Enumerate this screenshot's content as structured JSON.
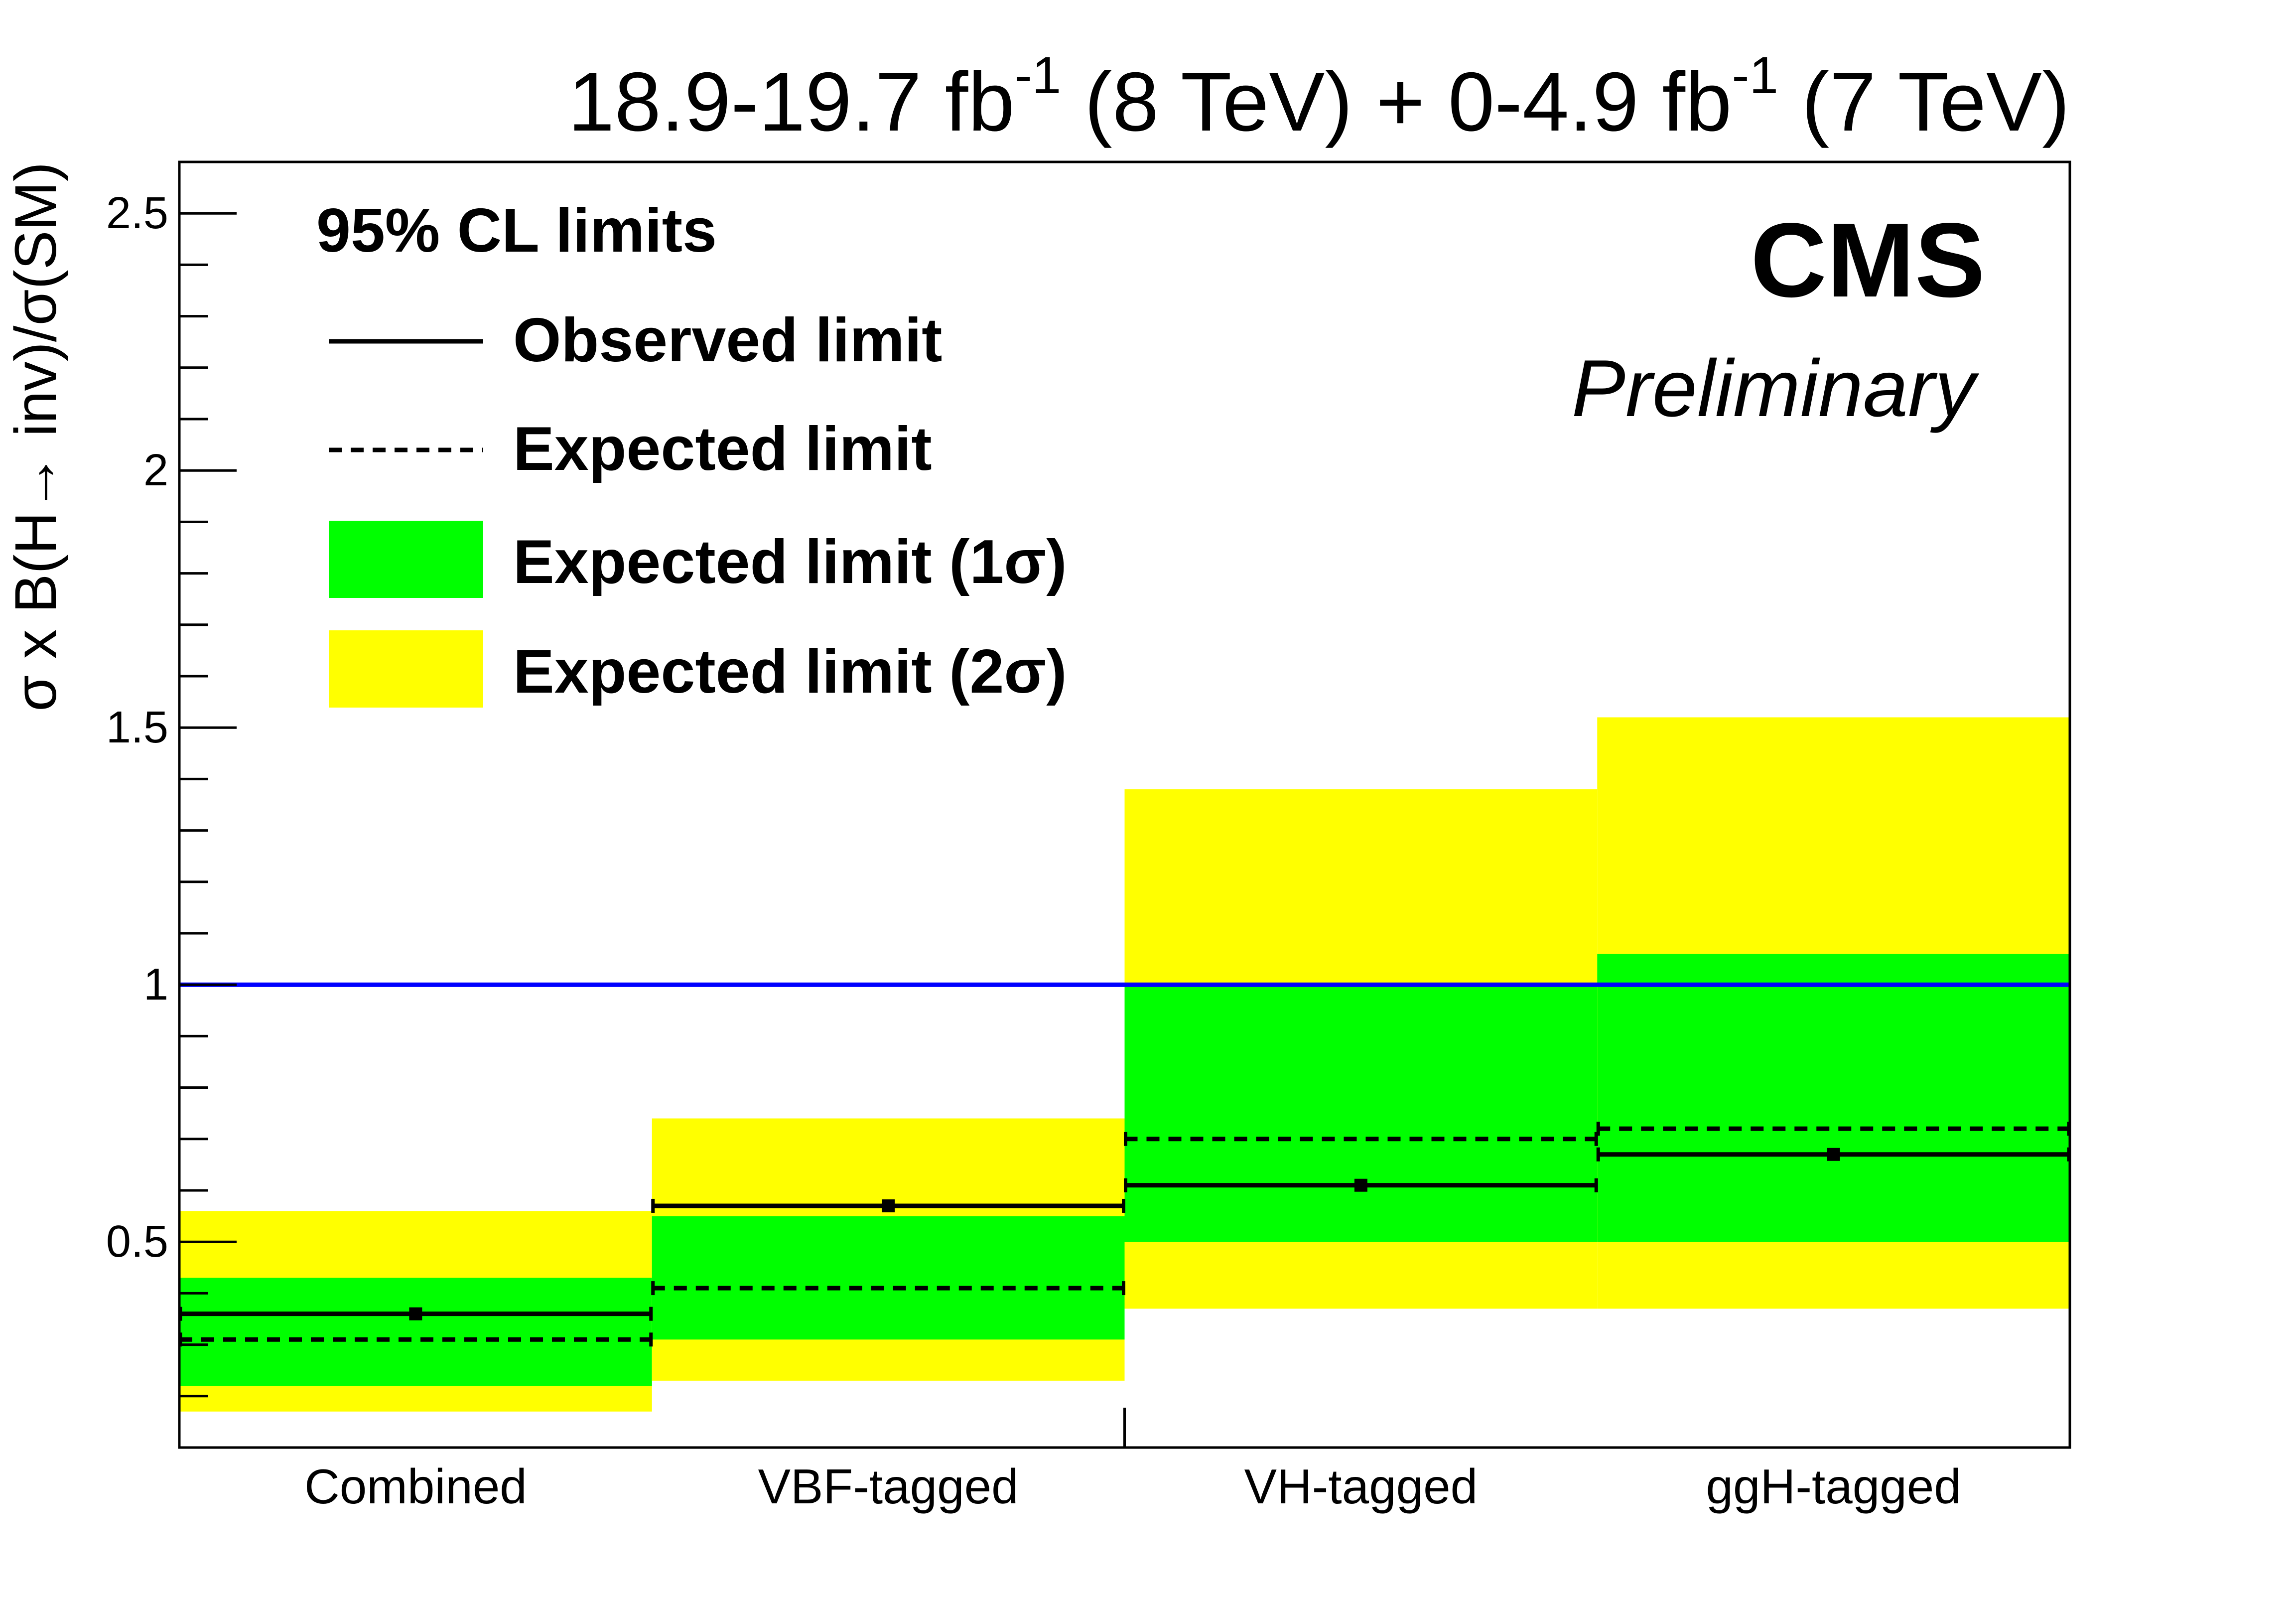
{
  "chart_data": {
    "type": "bar",
    "title": "18.9-19.7 fb-1 (8 TeV) + 0-4.9 fb-1 (7 TeV)",
    "title_parts": {
      "lumi8": "18.9-19.7 fb",
      "exp": "-1",
      "tev8": " (8 TeV) + 0-4.9 fb",
      "tev7": " (7 TeV)"
    },
    "ylabel": "σ x B(H→ inv)/σ(SM)",
    "xlabel": "",
    "ylim": [
      0.1,
      2.6
    ],
    "y_ticks": [
      0.5,
      1,
      1.5,
      2,
      2.5
    ],
    "y_tick_labels": [
      "0.5",
      "1",
      "1.5",
      "2",
      "2.5"
    ],
    "categories": [
      "Combined",
      "VBF-tagged",
      "VH-tagged",
      "ggH-tagged"
    ],
    "observed": [
      0.36,
      0.57,
      0.61,
      0.67
    ],
    "expected": [
      0.31,
      0.41,
      0.7,
      0.72
    ],
    "band_1sigma": [
      [
        0.22,
        0.43
      ],
      [
        0.31,
        0.55
      ],
      [
        0.5,
        1.0
      ],
      [
        0.5,
        1.06
      ]
    ],
    "band_2sigma": [
      [
        0.17,
        0.56
      ],
      [
        0.23,
        0.74
      ],
      [
        0.37,
        1.38
      ],
      [
        0.37,
        1.52
      ]
    ],
    "reference_line": 1,
    "legend": {
      "header": "95% CL limits",
      "placement": "top-left",
      "entries": [
        "Observed limit",
        "Expected limit",
        "Expected limit (1σ)",
        "Expected limit (2σ)"
      ]
    },
    "label_main": "CMS",
    "label_sub": "Preliminary",
    "colors": {
      "band_1sigma": "#00ff00",
      "band_2sigma": "#ffff00",
      "reference_line": "#0000ff",
      "lines": "#000000"
    }
  }
}
